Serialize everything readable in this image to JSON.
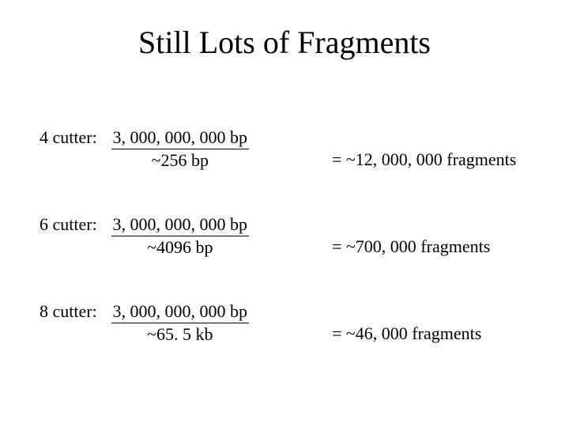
{
  "title": "Still Lots of Fragments",
  "rows": [
    {
      "label": "4 cutter:",
      "numerator": "3, 000, 000, 000 bp",
      "denominator": "~256 bp",
      "result": "=  ~12, 000, 000 fragments"
    },
    {
      "label": "6 cutter:",
      "numerator": "3, 000, 000, 000 bp",
      "denominator": "~4096 bp",
      "result": "=  ~700, 000 fragments"
    },
    {
      "label": "8 cutter:",
      "numerator": "3, 000, 000, 000 bp",
      "denominator": "~65. 5 kb",
      "result": "=  ~46, 000 fragments"
    }
  ]
}
